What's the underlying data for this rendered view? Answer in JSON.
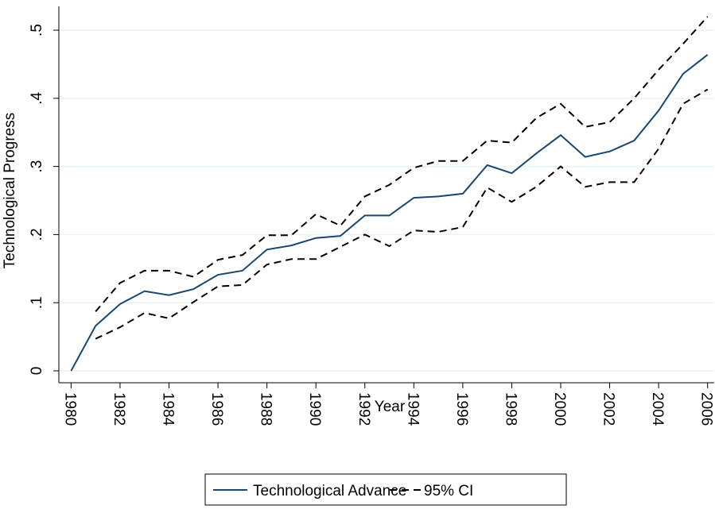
{
  "chart_data": {
    "type": "line",
    "y_label": "Technological Progress",
    "x_label": "Year",
    "x": [
      1980,
      1981,
      1982,
      1983,
      1984,
      1985,
      1986,
      1987,
      1988,
      1989,
      1990,
      1991,
      1992,
      1993,
      1994,
      1995,
      1996,
      1997,
      1998,
      1999,
      2000,
      2001,
      2002,
      2003,
      2004,
      2005,
      2006
    ],
    "series": [
      {
        "name": "Technological Advance",
        "color": "#1a476f",
        "dash": false,
        "values": [
          0,
          0.066,
          0.098,
          0.117,
          0.111,
          0.12,
          0.141,
          0.147,
          0.178,
          0.184,
          0.195,
          0.198,
          0.228,
          0.228,
          0.254,
          0.256,
          0.26,
          0.302,
          0.29,
          0.319,
          0.346,
          0.314,
          0.322,
          0.338,
          0.382,
          0.436,
          0.464
        ]
      },
      {
        "name": "95% CI",
        "color": "#000000",
        "dash": true,
        "lower": [
          null,
          0.047,
          0.064,
          0.085,
          0.077,
          0.101,
          0.124,
          0.126,
          0.156,
          0.164,
          0.164,
          0.182,
          0.2,
          0.183,
          0.206,
          0.204,
          0.211,
          0.269,
          0.248,
          0.27,
          0.3,
          0.27,
          0.277,
          0.277,
          0.326,
          0.392,
          0.413
        ],
        "upper": [
          null,
          0.087,
          0.129,
          0.147,
          0.147,
          0.138,
          0.163,
          0.17,
          0.199,
          0.199,
          0.23,
          0.213,
          0.256,
          0.273,
          0.298,
          0.308,
          0.308,
          0.338,
          0.335,
          0.371,
          0.392,
          0.358,
          0.365,
          0.4,
          0.442,
          0.48,
          0.52
        ]
      }
    ],
    "xlim": [
      1979.5,
      2006.27
    ],
    "xticks": [
      1980,
      1982,
      1984,
      1986,
      1988,
      1990,
      1992,
      1994,
      1996,
      1998,
      2000,
      2002,
      2004,
      2006
    ],
    "ylim": [
      -0.0175,
      0.535
    ],
    "yticks": [
      0,
      {
        "value": 0.1,
        "label": ".1"
      },
      {
        "value": 0.2,
        "label": ".2"
      },
      {
        "value": 0.3,
        "label": ".3"
      },
      {
        "value": 0.4,
        "label": ".4"
      },
      {
        "value": 0.5,
        "label": ".5"
      }
    ],
    "grid": true,
    "legend": "bottom"
  }
}
